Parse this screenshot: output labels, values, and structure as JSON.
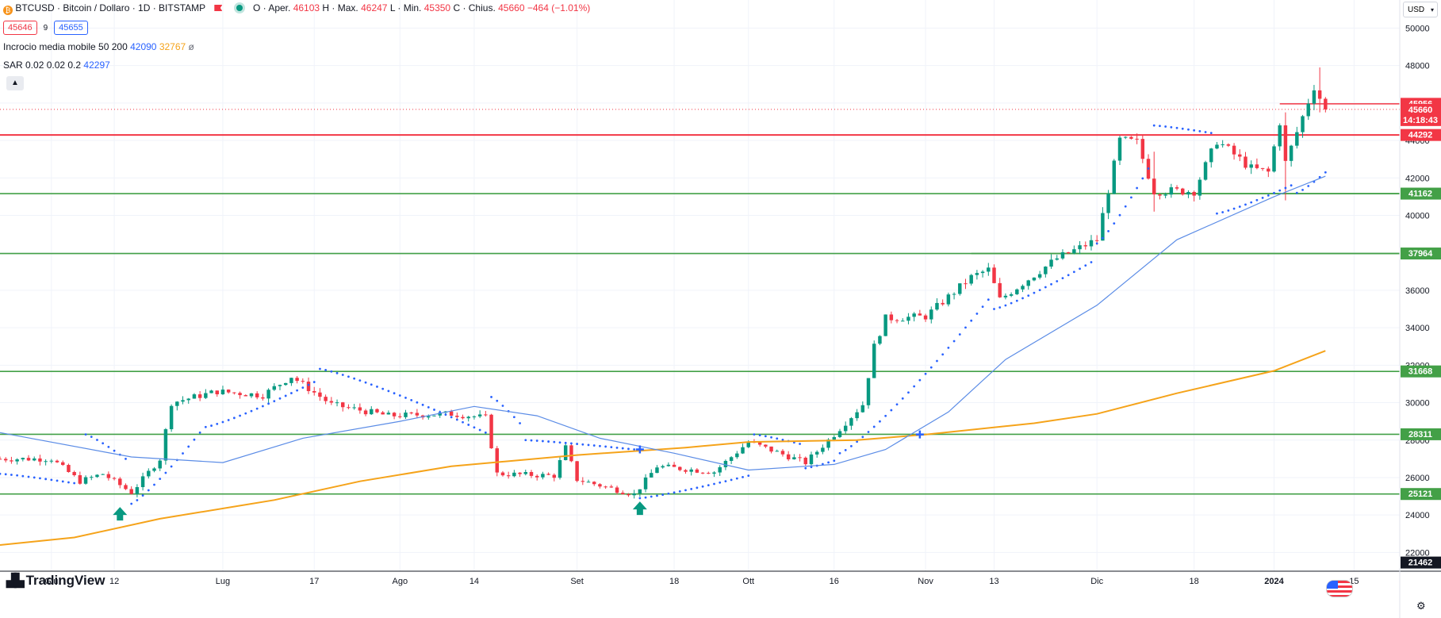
{
  "legend": {
    "symbol": "BTCUSD · Bitcoin / Dollaro · 1D · BITSTAMP",
    "open_label": "O · Aper.",
    "open": "46103",
    "high_label": "H · Max.",
    "high": "46247",
    "low_label": "L · Min.",
    "low": "45350",
    "close_label": "C · Chius.",
    "close": "45660",
    "change": "−464 (−1.01%)",
    "bid": "45646",
    "spread": "9",
    "ask": "45655",
    "ma_label": "Incrocio media mobile 50 200",
    "ma50": "42090",
    "ma200": "32767",
    "ma_extra": "ø",
    "sar_label": "SAR 0.02 0.02 0.2",
    "sar_value": "42297",
    "collapse_icon": "▲",
    "btc_glyph": "₿"
  },
  "header": {
    "currency": "USD",
    "currency_chevron": "▾"
  },
  "footer": {
    "logo_mark": "▟▙",
    "logo_text": "TradingView",
    "settings_icon": "⚙"
  },
  "colors": {
    "up": "#089981",
    "down": "#f23645",
    "ma50": "#5b8ce6",
    "ma200": "#f5a31a",
    "sar": "#2962ff",
    "support": "#43a047",
    "resistance": "#f23645"
  },
  "chart_data": {
    "type": "candlestick",
    "y_range": [
      21000,
      51500
    ],
    "y_ticks": [
      22000,
      24000,
      26000,
      28000,
      30000,
      32000,
      34000,
      36000,
      38000,
      40000,
      42000,
      44000,
      46000,
      48000,
      50000
    ],
    "x_range": [
      "2023-05-23",
      "2024-01-23"
    ],
    "x_ticks": [
      {
        "label": "Giu",
        "date": "2023-06-01"
      },
      {
        "label": "12",
        "date": "2023-06-12"
      },
      {
        "label": "Lug",
        "date": "2023-07-01"
      },
      {
        "label": "17",
        "date": "2023-07-17"
      },
      {
        "label": "Ago",
        "date": "2023-08-01"
      },
      {
        "label": "14",
        "date": "2023-08-14"
      },
      {
        "label": "Set",
        "date": "2023-09-01"
      },
      {
        "label": "18",
        "date": "2023-09-18"
      },
      {
        "label": "Ott",
        "date": "2023-10-01"
      },
      {
        "label": "16",
        "date": "2023-10-16"
      },
      {
        "label": "Nov",
        "date": "2023-11-01"
      },
      {
        "label": "13",
        "date": "2023-11-13"
      },
      {
        "label": "Dic",
        "date": "2023-12-01"
      },
      {
        "label": "18",
        "date": "2023-12-18"
      },
      {
        "label": "2024",
        "date": "2024-01-01"
      },
      {
        "label": "15",
        "date": "2024-01-15"
      }
    ],
    "anchors": [
      [
        "2023-05-23",
        27000
      ],
      [
        "2023-06-01",
        27000
      ],
      [
        "2023-06-06",
        25800
      ],
      [
        "2023-06-10",
        26200
      ],
      [
        "2023-06-15",
        25200
      ],
      [
        "2023-06-20",
        27000
      ],
      [
        "2023-06-22",
        30000
      ],
      [
        "2023-06-30",
        30600
      ],
      [
        "2023-07-08",
        30400
      ],
      [
        "2023-07-13",
        31400
      ],
      [
        "2023-07-20",
        29900
      ],
      [
        "2023-07-30",
        29300
      ],
      [
        "2023-08-10",
        29400
      ],
      [
        "2023-08-16",
        29200
      ],
      [
        "2023-08-18",
        26200
      ],
      [
        "2023-08-28",
        26100
      ],
      [
        "2023-08-30",
        27600
      ],
      [
        "2023-09-01",
        25900
      ],
      [
        "2023-09-11",
        25100
      ],
      [
        "2023-09-15",
        26600
      ],
      [
        "2023-09-25",
        26300
      ],
      [
        "2023-10-01",
        27900
      ],
      [
        "2023-10-11",
        26800
      ],
      [
        "2023-10-16",
        28300
      ],
      [
        "2023-10-21",
        29900
      ],
      [
        "2023-10-23",
        33000
      ],
      [
        "2023-10-25",
        34500
      ],
      [
        "2023-11-01",
        34600
      ],
      [
        "2023-11-09",
        36700
      ],
      [
        "2023-11-12",
        37100
      ],
      [
        "2023-11-14",
        35500
      ],
      [
        "2023-11-24",
        37700
      ],
      [
        "2023-12-01",
        38700
      ],
      [
        "2023-12-05",
        44000
      ],
      [
        "2023-12-08",
        43900
      ],
      [
        "2023-12-11",
        41300
      ],
      [
        "2023-12-18",
        41300
      ],
      [
        "2023-12-22",
        44000
      ],
      [
        "2023-12-28",
        42500
      ],
      [
        "2023-12-31",
        42300
      ],
      [
        "2024-01-02",
        45000
      ],
      [
        "2024-01-03",
        42800
      ],
      [
        "2024-01-08",
        46900
      ],
      [
        "2024-01-10",
        45660
      ]
    ],
    "extremes": {
      "2024-01-09": [
        45500,
        47900
      ],
      "2024-01-03": [
        40800,
        45500
      ],
      "2023-12-11": [
        40200,
        43400
      ]
    },
    "ma50": [
      [
        "2023-05-23",
        28400
      ],
      [
        "2023-06-15",
        27100
      ],
      [
        "2023-07-01",
        26800
      ],
      [
        "2023-07-15",
        28100
      ],
      [
        "2023-08-01",
        29000
      ],
      [
        "2023-08-14",
        29800
      ],
      [
        "2023-08-25",
        29300
      ],
      [
        "2023-09-05",
        28100
      ],
      [
        "2023-09-18",
        27300
      ],
      [
        "2023-10-01",
        26400
      ],
      [
        "2023-10-16",
        26700
      ],
      [
        "2023-10-25",
        27500
      ],
      [
        "2023-11-05",
        29500
      ],
      [
        "2023-11-15",
        32300
      ],
      [
        "2023-12-01",
        35200
      ],
      [
        "2023-12-15",
        38700
      ],
      [
        "2024-01-01",
        41000
      ],
      [
        "2024-01-10",
        42090
      ]
    ],
    "ma200": [
      [
        "2023-05-23",
        22400
      ],
      [
        "2023-06-05",
        22800
      ],
      [
        "2023-06-20",
        23800
      ],
      [
        "2023-07-10",
        24800
      ],
      [
        "2023-07-25",
        25800
      ],
      [
        "2023-08-10",
        26600
      ],
      [
        "2023-09-01",
        27200
      ],
      [
        "2023-09-20",
        27600
      ],
      [
        "2023-10-01",
        27900
      ],
      [
        "2023-10-20",
        28000
      ],
      [
        "2023-11-01",
        28300
      ],
      [
        "2023-11-20",
        28900
      ],
      [
        "2023-12-01",
        29400
      ],
      [
        "2023-12-15",
        30500
      ],
      [
        "2024-01-01",
        31700
      ],
      [
        "2024-01-10",
        32767
      ]
    ],
    "sar_segments": [
      {
        "from": "2023-05-23",
        "to": "2023-06-05",
        "start": 26200,
        "end": 25700
      },
      {
        "from": "2023-06-07",
        "to": "2023-06-14",
        "start": 28300,
        "end": 27000
      },
      {
        "from": "2023-06-15",
        "to": "2023-06-27",
        "start": 24600,
        "end": 28400
      },
      {
        "from": "2023-06-28",
        "to": "2023-07-17",
        "start": 28700,
        "end": 31100
      },
      {
        "from": "2023-07-18",
        "to": "2023-08-16",
        "start": 31800,
        "end": 28400
      },
      {
        "from": "2023-08-17",
        "to": "2023-08-22",
        "start": 30300,
        "end": 28900
      },
      {
        "from": "2023-08-23",
        "to": "2023-09-11",
        "start": 28000,
        "end": 27500
      },
      {
        "from": "2023-09-12",
        "to": "2023-10-01",
        "start": 24900,
        "end": 26100
      },
      {
        "from": "2023-10-02",
        "to": "2023-10-10",
        "start": 28300,
        "end": 27800
      },
      {
        "from": "2023-10-11",
        "to": "2023-10-16",
        "start": 26500,
        "end": 26900
      },
      {
        "from": "2023-10-17",
        "to": "2023-11-12",
        "start": 27300,
        "end": 35500
      },
      {
        "from": "2023-11-13",
        "to": "2023-11-30",
        "start": 35000,
        "end": 37500
      },
      {
        "from": "2023-12-01",
        "to": "2023-12-10",
        "start": 38500,
        "end": 42500
      },
      {
        "from": "2023-12-11",
        "to": "2023-12-21",
        "start": 44800,
        "end": 44400
      },
      {
        "from": "2023-12-22",
        "to": "2024-01-04",
        "start": 40100,
        "end": 41600
      },
      {
        "from": "2024-01-05",
        "to": "2024-01-10",
        "start": 41200,
        "end": 42297
      }
    ],
    "hlines": [
      {
        "value": 44292,
        "label": "44292",
        "kind": "resistance"
      },
      {
        "value": 41162,
        "label": "41162",
        "kind": "support"
      },
      {
        "value": 37964,
        "label": "37964",
        "kind": "support"
      },
      {
        "value": 31668,
        "label": "31668",
        "kind": "support"
      },
      {
        "value": 28311,
        "label": "28311",
        "kind": "support"
      },
      {
        "value": 25121,
        "label": "25121",
        "kind": "support"
      }
    ],
    "segments": [
      {
        "from": "2024-01-02",
        "to": "2024-01-23",
        "value": 45956,
        "kind": "resistance"
      },
      {
        "from": "2023-12-11",
        "to": "2024-01-23",
        "value": 41162,
        "kind": "support"
      },
      {
        "from": "2023-11-09",
        "to": "2024-01-23",
        "value": 37964,
        "kind": "support"
      }
    ],
    "price_tags": [
      {
        "value": 45956,
        "label": "45956",
        "kind": "resistance"
      },
      {
        "value": 45660,
        "label": "45660",
        "kind": "current",
        "sub": "14:18:43"
      },
      {
        "value": 44292,
        "label": "44292",
        "kind": "resistance"
      },
      {
        "value": 41162,
        "label": "41162",
        "kind": "support"
      },
      {
        "value": 37964,
        "label": "37964",
        "kind": "support"
      },
      {
        "value": 31668,
        "label": "31668",
        "kind": "support"
      },
      {
        "value": 28311,
        "label": "28311",
        "kind": "support"
      },
      {
        "value": 25121,
        "label": "25121",
        "kind": "support"
      },
      {
        "value": 21462,
        "label": "21462",
        "kind": "black"
      }
    ],
    "current_price": 45660,
    "buy_signals": [
      {
        "date": "2023-06-13",
        "value": 24000
      },
      {
        "date": "2023-09-12",
        "value": 24300
      }
    ],
    "crosses": [
      {
        "date": "2023-09-12",
        "value": 27500
      },
      {
        "date": "2023-10-31",
        "value": 28300
      }
    ]
  }
}
